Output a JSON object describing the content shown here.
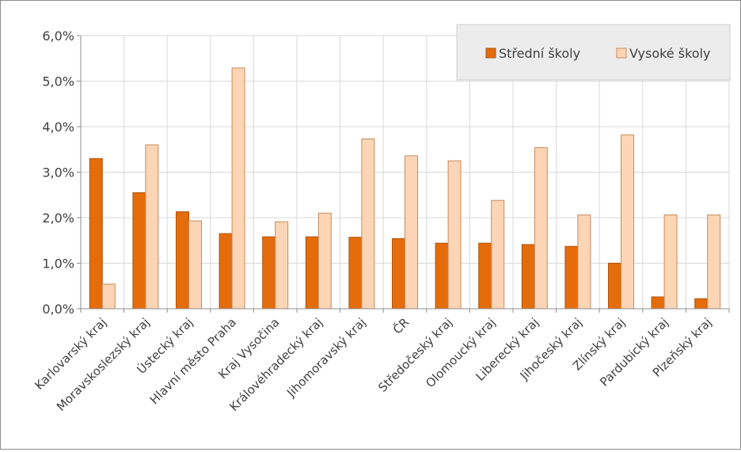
{
  "chart_data": {
    "type": "bar",
    "categories": [
      "Karlovarský kraj",
      "Moravskoslezský kraj",
      "Ústecký kraj",
      "Hlavní město Praha",
      "Kraj Vysočina",
      "Královéhradecký kraj",
      "Jihomoravský kraj",
      "ČR",
      "Středočeský kraj",
      "Olomoucký kraj",
      "Liberecký kraj",
      "Jihočeský kraj",
      "Zlínský kraj",
      "Pardubický kraj",
      "Plzeňský kraj"
    ],
    "series": [
      {
        "name": "Střední školy",
        "color": "#E46C0A",
        "values": [
          3.3,
          2.55,
          2.13,
          1.65,
          1.58,
          1.58,
          1.57,
          1.54,
          1.44,
          1.44,
          1.41,
          1.37,
          1.0,
          0.26,
          0.22
        ]
      },
      {
        "name": "Vysoké školy",
        "color": "#FBD5B5",
        "values": [
          0.54,
          3.6,
          1.93,
          5.29,
          1.91,
          2.1,
          3.73,
          3.36,
          3.25,
          2.38,
          3.54,
          2.06,
          3.82,
          2.06,
          2.06
        ]
      }
    ],
    "yticks": [
      "0,0%",
      "1,0%",
      "2,0%",
      "3,0%",
      "4,0%",
      "5,0%",
      "6,0%"
    ],
    "ylim": [
      0,
      6
    ],
    "grid": true,
    "legend_position": "top-right",
    "title": "",
    "xlabel": "",
    "ylabel": ""
  }
}
